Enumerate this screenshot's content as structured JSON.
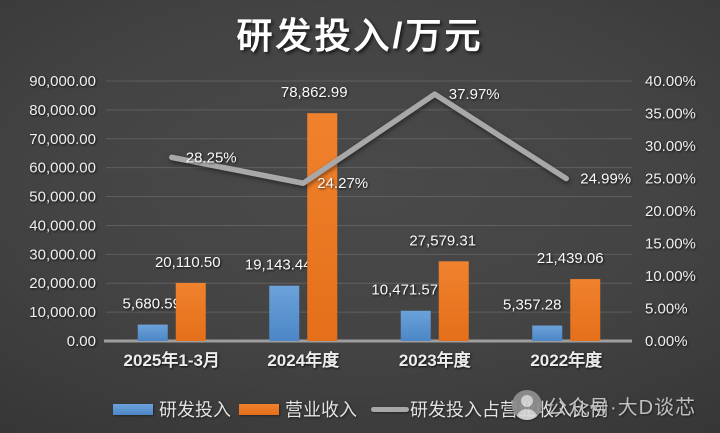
{
  "title": "研发投入/万元",
  "chart_data": {
    "type": "combo-bar-line",
    "title": "研发投入/万元",
    "categories": [
      "2025年1-3月",
      "2024年度",
      "2023年度",
      "2022年度"
    ],
    "series": [
      {
        "name": "研发投入",
        "type": "bar",
        "axis": "left",
        "color": "#5B9BD5",
        "values": [
          5680.59,
          19143.44,
          10471.57,
          5357.28
        ],
        "data_labels": [
          "5,680.59",
          "19,143.44",
          "10,471.57",
          "5,357.28"
        ]
      },
      {
        "name": "营业收入",
        "type": "bar",
        "axis": "left",
        "color": "#ED7D31",
        "values": [
          20110.5,
          78862.99,
          27579.31,
          21439.06
        ],
        "data_labels": [
          "20,110.50",
          "78,862.99",
          "27,579.31",
          "21,439.06"
        ]
      },
      {
        "name": "研发投入占营业收入比例",
        "type": "line",
        "axis": "right",
        "color": "#A8A8A8",
        "values": [
          28.25,
          24.27,
          37.97,
          24.99
        ],
        "data_labels": [
          "28.25%",
          "24.27%",
          "37.97%",
          "24.99%"
        ]
      }
    ],
    "left_axis": {
      "min": 0,
      "max": 90000,
      "step": 10000,
      "tick_labels": [
        "0.00",
        "10,000.00",
        "20,000.00",
        "30,000.00",
        "40,000.00",
        "50,000.00",
        "60,000.00",
        "70,000.00",
        "80,000.00",
        "90,000.00"
      ]
    },
    "right_axis": {
      "min": 0,
      "max": 40,
      "step": 5,
      "tick_labels": [
        "0.00%",
        "5.00%",
        "10.00%",
        "15.00%",
        "20.00%",
        "25.00%",
        "30.00%",
        "35.00%",
        "40.00%"
      ]
    },
    "grid": true,
    "legend_position": "bottom"
  },
  "legend": {
    "items": [
      {
        "label": "研发投入",
        "swatch": "bar",
        "color_top": "#6BA2DA",
        "color_bottom": "#4C86C6"
      },
      {
        "label": "营业收入",
        "swatch": "bar",
        "color_top": "#F0822D",
        "color_bottom": "#E56F1A"
      },
      {
        "label": "研发投入占营业收入比例",
        "swatch": "line",
        "color": "#A8A8A8"
      }
    ]
  },
  "watermark": {
    "icon": "official-account-avatar",
    "text": "公众号·大D谈芯"
  },
  "colors": {
    "background_center": "#4a4a4a",
    "background_edge": "#1f1f1f",
    "bar_blue_top": "#6BA2DA",
    "bar_blue_bottom": "#4C86C6",
    "bar_orange_top": "#F0822D",
    "bar_orange_bottom": "#E56F1A",
    "line_gray": "#A8A8A8",
    "grid_line": "rgba(255,255,255,0.14)",
    "axis_line": "#9E9E9E",
    "text": "#F2F2F2"
  }
}
